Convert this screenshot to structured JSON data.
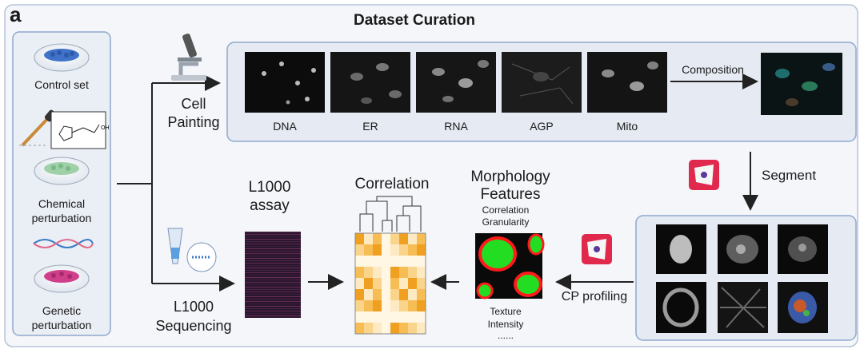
{
  "panel": {
    "letter": "a",
    "title": "Dataset Curation"
  },
  "inputs": {
    "control": "Control set",
    "chemical": [
      "Chemical",
      "perturbation"
    ],
    "genetic": [
      "Genetic",
      "perturbation"
    ]
  },
  "cell_painting": {
    "label": [
      "Cell",
      "Painting"
    ],
    "channels": [
      "DNA",
      "ER",
      "RNA",
      "AGP",
      "Mito"
    ],
    "composition": "Composition"
  },
  "segment": "Segment",
  "cp_profiling": "CP profiling",
  "morphology": {
    "title": [
      "Morphology",
      "Features"
    ],
    "features_top": [
      "Correlation",
      "Granularity"
    ],
    "features_bottom": [
      "Texture",
      "Intensity",
      "......"
    ]
  },
  "correlation": "Correlation",
  "l1000_assay": [
    "L1000",
    "assay"
  ],
  "l1000_sequencing": [
    "L1000",
    "Sequencing"
  ],
  "colors": {
    "panel_bg": "#f4f6fa",
    "box_border": "#8fa7cc",
    "heat_dark": "#f0a020",
    "heat_light": "#fde9c2",
    "assay": "#2a1630",
    "icon_red": "#e0294d",
    "green": "#22dd22"
  }
}
